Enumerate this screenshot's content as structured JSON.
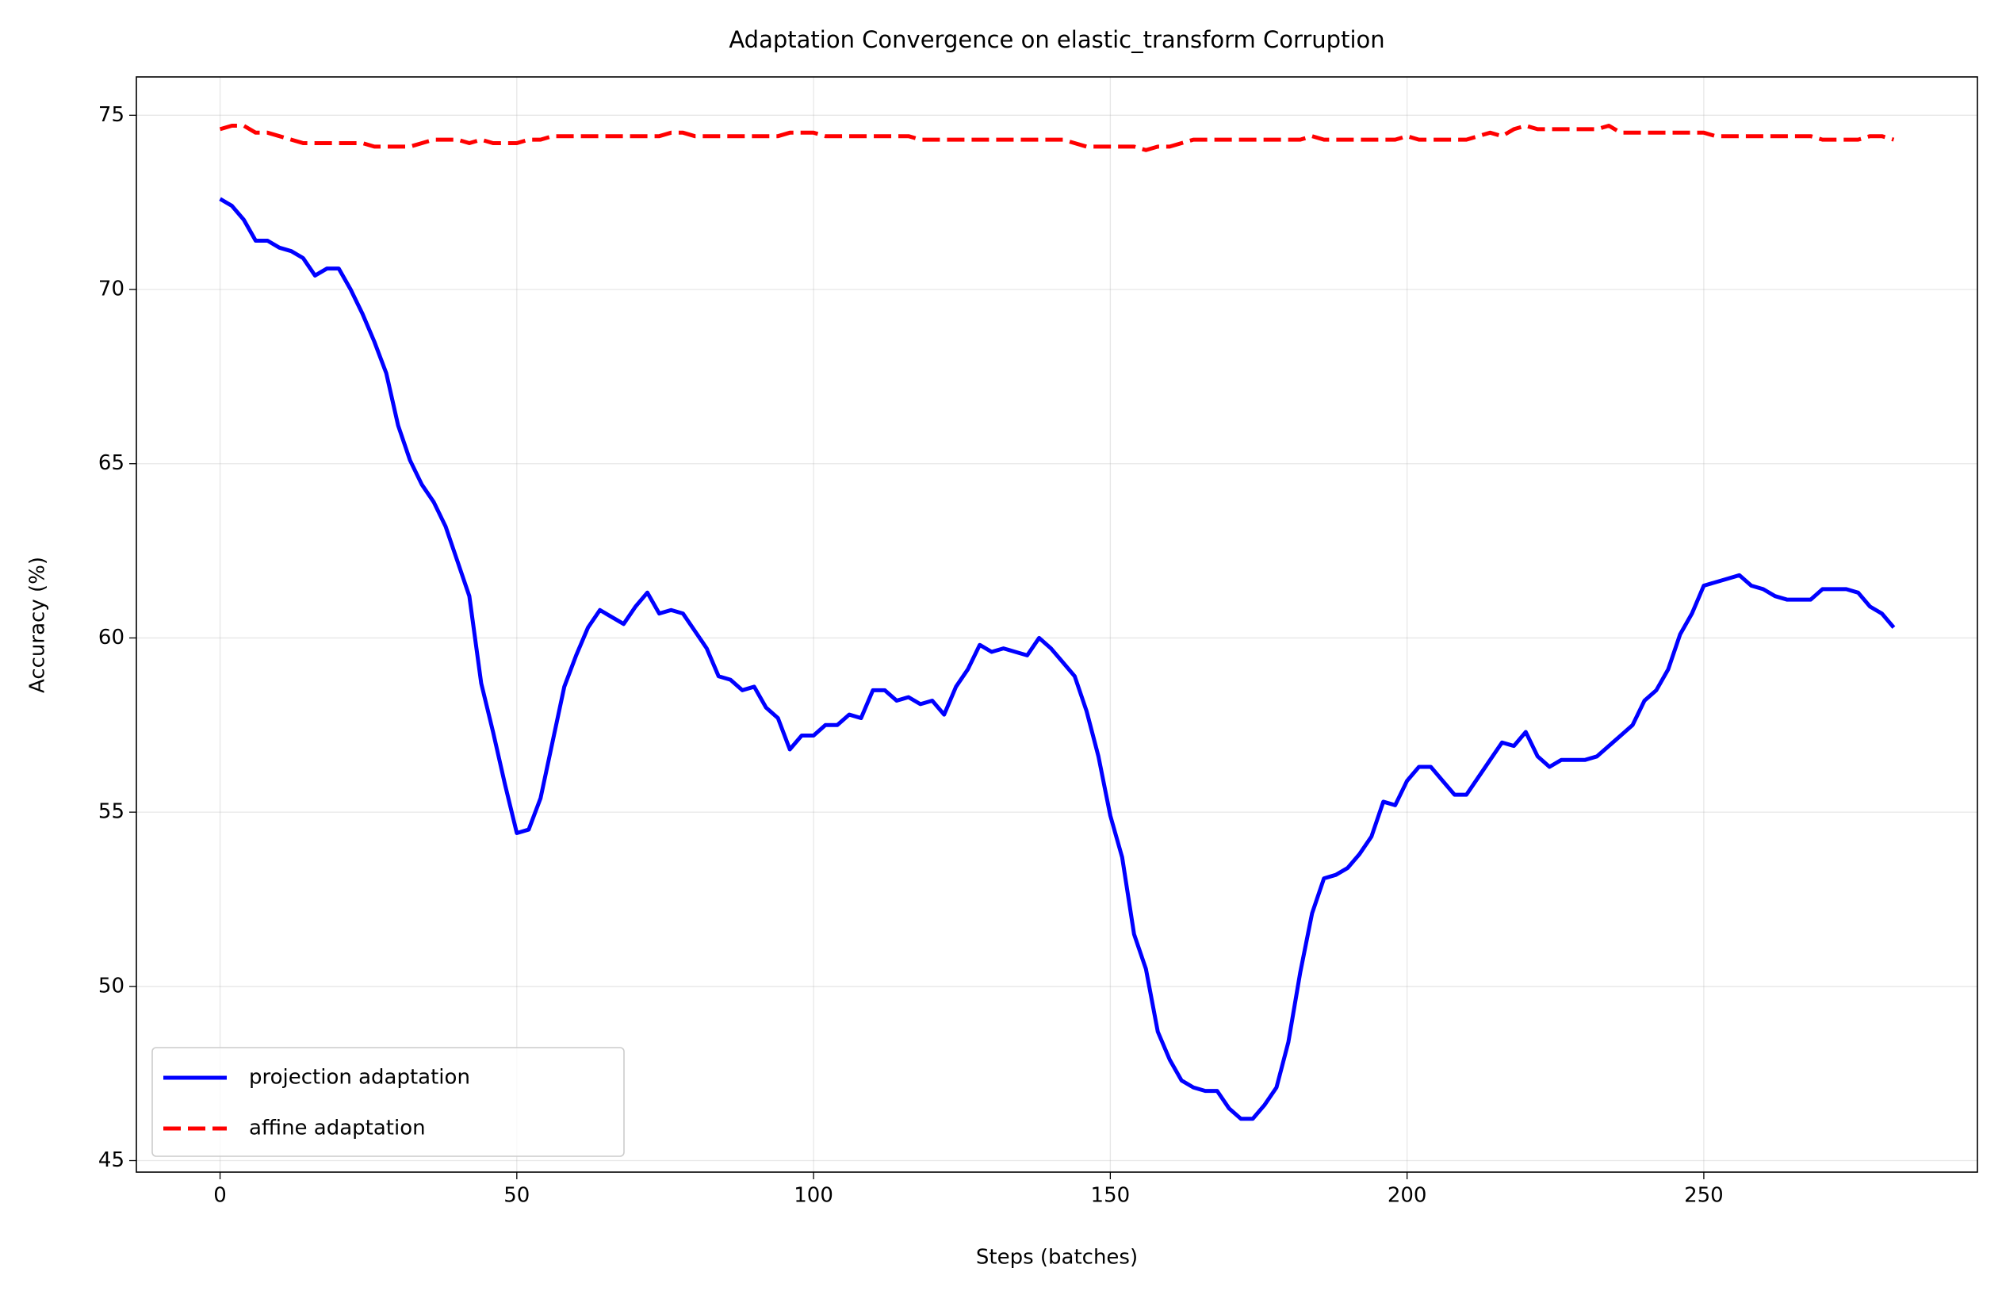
{
  "chart_data": {
    "type": "line",
    "title": "Adaptation Convergence on elastic_transform Corruption",
    "x_label": "Steps (batches)",
    "y_label": "Accuracy (%)",
    "x": [
      0,
      2,
      4,
      6,
      8,
      10,
      12,
      14,
      16,
      18,
      20,
      22,
      24,
      26,
      28,
      30,
      32,
      34,
      36,
      38,
      40,
      42,
      44,
      46,
      48,
      50,
      52,
      54,
      56,
      58,
      60,
      62,
      64,
      66,
      68,
      70,
      72,
      74,
      76,
      78,
      80,
      82,
      84,
      86,
      88,
      90,
      92,
      94,
      96,
      98,
      100,
      102,
      104,
      106,
      108,
      110,
      112,
      114,
      116,
      118,
      120,
      122,
      124,
      126,
      128,
      130,
      132,
      134,
      136,
      138,
      140,
      142,
      144,
      146,
      148,
      150,
      152,
      154,
      156,
      158,
      160,
      162,
      164,
      166,
      168,
      170,
      172,
      174,
      176,
      178,
      180,
      182,
      184,
      186,
      188,
      190,
      192,
      194,
      196,
      198,
      200,
      202,
      204,
      206,
      208,
      210,
      212,
      214,
      216,
      218,
      220,
      222,
      224,
      226,
      228,
      230,
      232,
      234,
      236,
      238,
      240,
      242,
      244,
      246,
      248,
      250,
      252,
      254,
      256,
      258,
      260,
      262,
      264,
      266,
      268,
      270,
      272,
      274,
      276,
      278,
      280,
      282
    ],
    "series": [
      {
        "name": "projection adaptation",
        "color": "#0000ff",
        "dash": "solid",
        "values": [
          72.6,
          72.4,
          72.0,
          71.4,
          71.4,
          71.2,
          71.1,
          70.9,
          70.4,
          70.6,
          70.6,
          70.0,
          69.3,
          68.5,
          67.6,
          66.1,
          65.1,
          64.4,
          63.9,
          63.2,
          62.2,
          61.2,
          58.7,
          57.3,
          55.8,
          54.4,
          54.5,
          55.4,
          57.0,
          58.6,
          59.5,
          60.3,
          60.8,
          60.6,
          60.4,
          60.9,
          61.3,
          60.7,
          60.8,
          60.7,
          60.2,
          59.7,
          58.9,
          58.8,
          58.5,
          58.6,
          58.0,
          57.7,
          56.8,
          57.2,
          57.2,
          57.5,
          57.5,
          57.8,
          57.7,
          58.5,
          58.5,
          58.2,
          58.3,
          58.1,
          58.2,
          57.8,
          58.6,
          59.1,
          59.8,
          59.6,
          59.7,
          59.6,
          59.5,
          60.0,
          59.7,
          59.3,
          58.9,
          57.9,
          56.6,
          54.9,
          53.7,
          51.5,
          50.5,
          48.7,
          47.9,
          47.3,
          47.1,
          47.0,
          47.0,
          46.5,
          46.2,
          46.2,
          46.6,
          47.1,
          48.4,
          50.4,
          52.1,
          53.1,
          53.2,
          53.4,
          53.8,
          54.3,
          55.3,
          55.2,
          55.9,
          56.3,
          56.3,
          55.9,
          55.5,
          55.5,
          56.0,
          56.5,
          57.0,
          56.9,
          57.3,
          56.6,
          56.3,
          56.5,
          56.5,
          56.5,
          56.6,
          56.9,
          57.2,
          57.5,
          58.2,
          58.5,
          59.1,
          60.1,
          60.7,
          61.5,
          61.6,
          61.7,
          61.8,
          61.5,
          61.4,
          61.2,
          61.1,
          61.1,
          61.1,
          61.4,
          61.4,
          61.4,
          61.3,
          60.9,
          60.7,
          60.3
        ]
      },
      {
        "name": "affine adaptation",
        "color": "#ff0000",
        "dash": "dashed",
        "values": [
          74.6,
          74.7,
          74.7,
          74.5,
          74.5,
          74.4,
          74.3,
          74.2,
          74.2,
          74.2,
          74.2,
          74.2,
          74.2,
          74.1,
          74.1,
          74.1,
          74.1,
          74.2,
          74.3,
          74.3,
          74.3,
          74.2,
          74.3,
          74.2,
          74.2,
          74.2,
          74.3,
          74.3,
          74.4,
          74.4,
          74.4,
          74.4,
          74.4,
          74.4,
          74.4,
          74.4,
          74.4,
          74.4,
          74.5,
          74.5,
          74.4,
          74.4,
          74.4,
          74.4,
          74.4,
          74.4,
          74.4,
          74.4,
          74.5,
          74.5,
          74.5,
          74.4,
          74.4,
          74.4,
          74.4,
          74.4,
          74.4,
          74.4,
          74.4,
          74.3,
          74.3,
          74.3,
          74.3,
          74.3,
          74.3,
          74.3,
          74.3,
          74.3,
          74.3,
          74.3,
          74.3,
          74.3,
          74.2,
          74.1,
          74.1,
          74.1,
          74.1,
          74.1,
          74.0,
          74.1,
          74.1,
          74.2,
          74.3,
          74.3,
          74.3,
          74.3,
          74.3,
          74.3,
          74.3,
          74.3,
          74.3,
          74.3,
          74.4,
          74.3,
          74.3,
          74.3,
          74.3,
          74.3,
          74.3,
          74.3,
          74.4,
          74.3,
          74.3,
          74.3,
          74.3,
          74.3,
          74.4,
          74.5,
          74.4,
          74.6,
          74.7,
          74.6,
          74.6,
          74.6,
          74.6,
          74.6,
          74.6,
          74.7,
          74.5,
          74.5,
          74.5,
          74.5,
          74.5,
          74.5,
          74.5,
          74.5,
          74.4,
          74.4,
          74.4,
          74.4,
          74.4,
          74.4,
          74.4,
          74.4,
          74.4,
          74.3,
          74.3,
          74.3,
          74.3,
          74.4,
          74.4,
          74.3
        ]
      }
    ],
    "xlim": [
      -14.1,
      296.1
    ],
    "ylim": [
      44.67,
      76.1
    ],
    "xticks": [
      0,
      50,
      100,
      150,
      200,
      250
    ],
    "yticks": [
      45,
      50,
      55,
      60,
      65,
      70,
      75
    ],
    "grid": true,
    "legend": "lower left"
  }
}
